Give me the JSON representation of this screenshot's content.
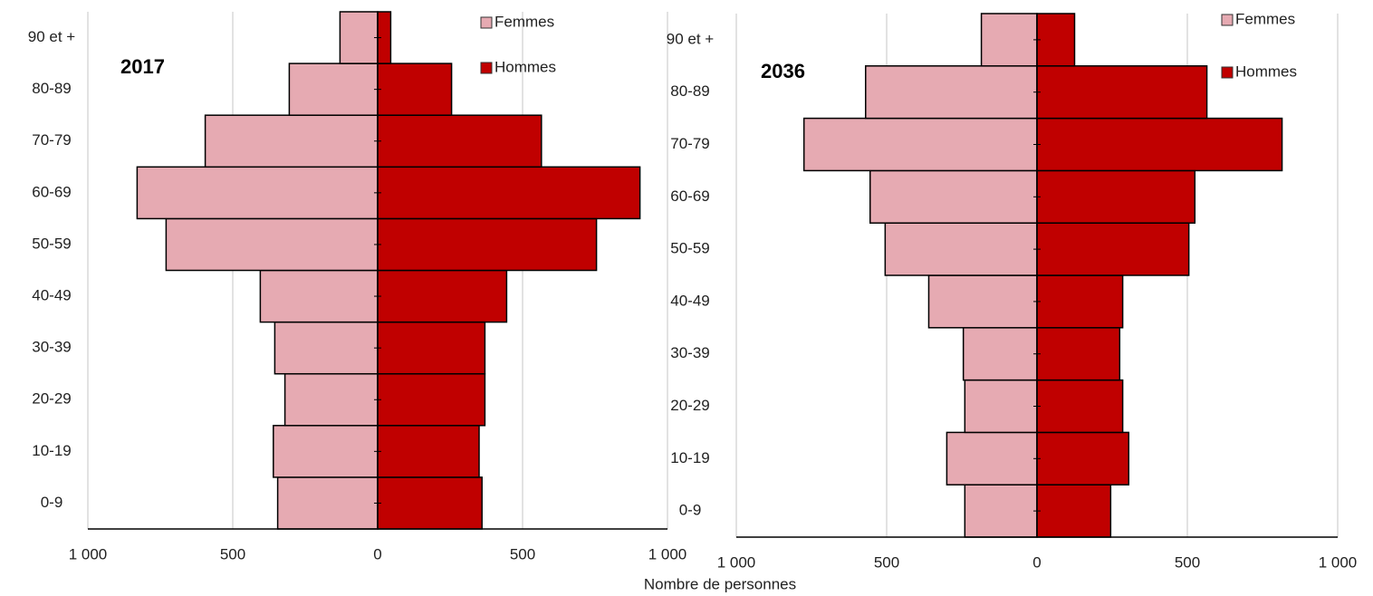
{
  "chart_data": [
    {
      "type": "bar",
      "orientation": "horizontal",
      "title": "2017",
      "x_label": "Nombre de personnes",
      "categories": [
        "0-9",
        "10-19",
        "20-29",
        "30-39",
        "40-49",
        "50-59",
        "60-69",
        "70-79",
        "80-89",
        "90 et +"
      ],
      "series": [
        {
          "name": "Femmes",
          "color": "#e6aab2",
          "values": [
            -345,
            -360,
            -320,
            -355,
            -405,
            -730,
            -830,
            -595,
            -305,
            -130
          ]
        },
        {
          "name": "Hommes",
          "color": "#c00000",
          "values": [
            360,
            350,
            370,
            370,
            445,
            755,
            905,
            565,
            255,
            45
          ]
        }
      ],
      "xlim": [
        -1000,
        1000
      ],
      "xticks": [
        {
          "value": -1000,
          "label": "1 000"
        },
        {
          "value": -500,
          "label": "500"
        },
        0,
        500,
        {
          "value": 1000,
          "label": "1 000"
        }
      ],
      "grid": true
    },
    {
      "type": "bar",
      "orientation": "horizontal",
      "title": "2036",
      "categories": [
        "0-9",
        "10-19",
        "20-29",
        "30-39",
        "40-49",
        "50-59",
        "60-69",
        "70-79",
        "80-89",
        "90 et +"
      ],
      "series": [
        {
          "name": "Femmes",
          "color": "#e6aab2",
          "values": [
            -240,
            -300,
            -240,
            -245,
            -360,
            -505,
            -555,
            -775,
            -570,
            -185
          ]
        },
        {
          "name": "Hommes",
          "color": "#c00000",
          "values": [
            245,
            305,
            285,
            275,
            285,
            505,
            525,
            815,
            565,
            125
          ]
        }
      ],
      "xlim": [
        -1000,
        1000
      ],
      "xticks": [
        {
          "value": -1000,
          "label": "1 000"
        },
        {
          "value": -500,
          "label": "500"
        },
        0,
        500,
        {
          "value": 1000,
          "label": "1 000"
        }
      ],
      "grid": true
    }
  ]
}
